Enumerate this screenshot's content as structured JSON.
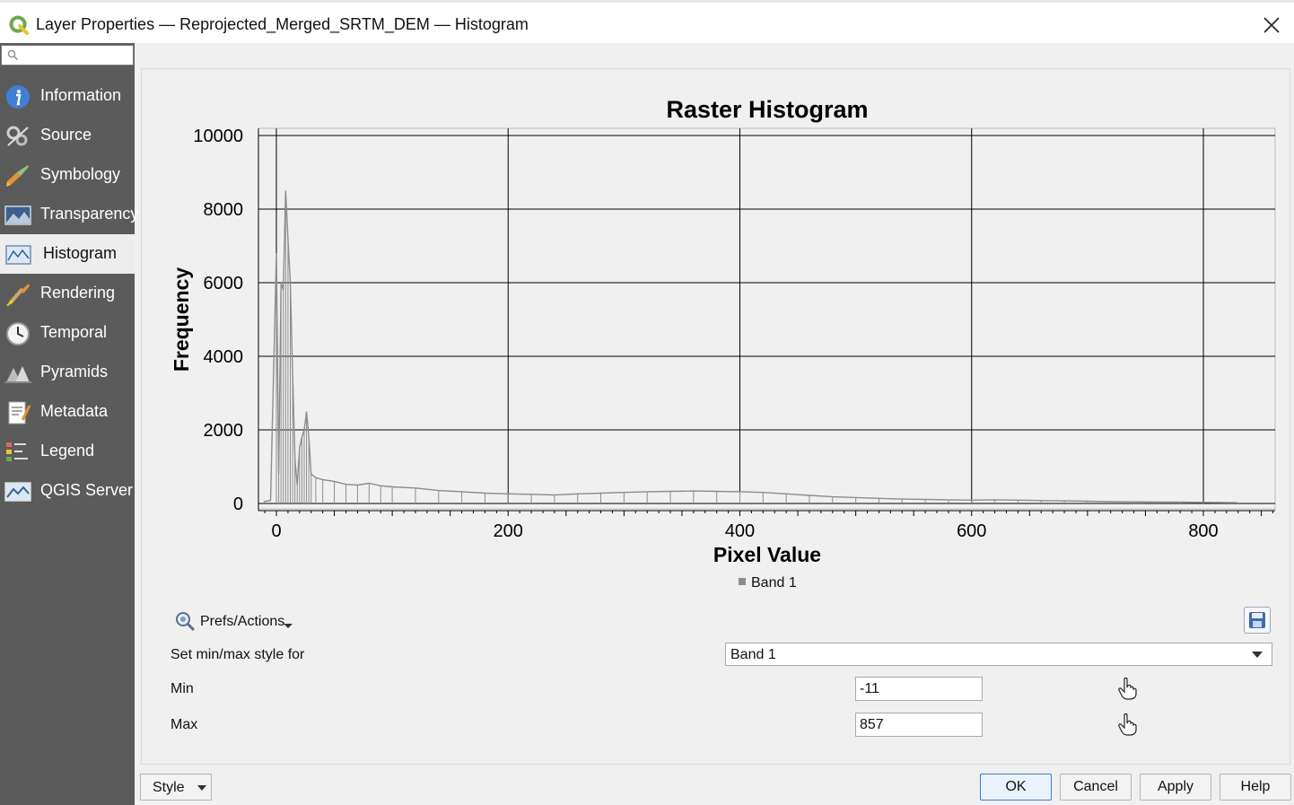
{
  "window": {
    "title": "Layer Properties — Reprojected_Merged_SRTM_DEM — Histogram"
  },
  "search": {
    "placeholder": ""
  },
  "sidebar": {
    "items": [
      {
        "label": "Information",
        "icon": "info-icon"
      },
      {
        "label": "Source",
        "icon": "source-icon"
      },
      {
        "label": "Symbology",
        "icon": "symbology-icon"
      },
      {
        "label": "Transparency",
        "icon": "transparency-icon"
      },
      {
        "label": "Histogram",
        "icon": "histogram-icon",
        "active": true
      },
      {
        "label": "Rendering",
        "icon": "rendering-icon"
      },
      {
        "label": "Temporal",
        "icon": "clock-icon"
      },
      {
        "label": "Pyramids",
        "icon": "pyramids-icon"
      },
      {
        "label": "Metadata",
        "icon": "metadata-icon"
      },
      {
        "label": "Legend",
        "icon": "legend-icon"
      },
      {
        "label": "QGIS Server",
        "icon": "server-icon"
      }
    ]
  },
  "chart_data": {
    "type": "line",
    "title": "Raster Histogram",
    "xlabel": "Pixel Value",
    "ylabel": "Frequency",
    "xlim": [
      -13,
      858
    ],
    "ylim": [
      0,
      10000
    ],
    "xticks": [
      0,
      200,
      400,
      600,
      800
    ],
    "yticks": [
      0,
      2000,
      4000,
      6000,
      8000,
      10000
    ],
    "grid": true,
    "legend_position": "bottom-center",
    "series": [
      {
        "name": "Band 1",
        "color": "#8c8c8c",
        "x": [
          -11,
          -5,
          0,
          2,
          4,
          6,
          8,
          10,
          12,
          14,
          16,
          18,
          20,
          22,
          24,
          26,
          28,
          30,
          34,
          40,
          50,
          60,
          70,
          80,
          90,
          100,
          120,
          140,
          160,
          180,
          200,
          220,
          240,
          260,
          280,
          300,
          320,
          340,
          360,
          380,
          400,
          420,
          440,
          460,
          480,
          500,
          520,
          540,
          560,
          580,
          600,
          620,
          640,
          660,
          680,
          700,
          720,
          740,
          760,
          780,
          800,
          820,
          830
        ],
        "y": [
          50,
          80,
          6800,
          800,
          6000,
          5800,
          8500,
          7200,
          6000,
          3500,
          1200,
          500,
          1500,
          1800,
          2000,
          2500,
          1800,
          800,
          700,
          650,
          600,
          520,
          500,
          550,
          480,
          450,
          420,
          350,
          320,
          280,
          260,
          250,
          230,
          260,
          280,
          300,
          320,
          330,
          340,
          330,
          320,
          300,
          260,
          220,
          180,
          160,
          140,
          120,
          110,
          100,
          90,
          100,
          90,
          80,
          70,
          60,
          50,
          45,
          40,
          40,
          30,
          25,
          20
        ]
      }
    ]
  },
  "prefs": {
    "label": "Prefs/Actions"
  },
  "minmax": {
    "style_label": "Set min/max style for",
    "style_value": "Band 1",
    "min_label": "Min",
    "min_value": "-11",
    "max_label": "Max",
    "max_value": "857"
  },
  "buttons": {
    "style": "Style",
    "ok": "OK",
    "cancel": "Cancel",
    "apply": "Apply",
    "help": "Help"
  }
}
